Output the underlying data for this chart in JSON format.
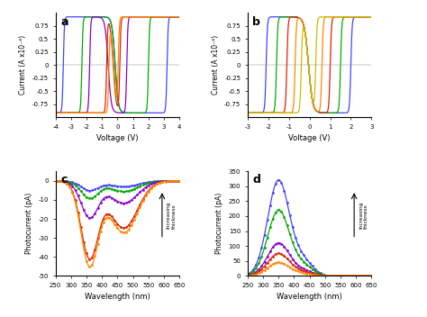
{
  "panel_a": {
    "colors": [
      "#4444ff",
      "#00aa00",
      "#8800cc",
      "#dd2200",
      "#ff8800"
    ],
    "v_on_pos": [
      3.2,
      2.0,
      0.6,
      0.15,
      0.05
    ],
    "v_on_neg": [
      -3.5,
      -2.3,
      -1.8,
      -0.7,
      -0.55
    ],
    "xlim": [
      -4,
      4
    ],
    "ylim": [
      -1,
      1
    ],
    "xticks": [
      -4,
      -3,
      -2,
      -1,
      0,
      1,
      2,
      3,
      4
    ],
    "yticks": [
      -0.75,
      -0.5,
      -0.25,
      0,
      0.25,
      0.5,
      0.75
    ],
    "xlabel": "Voltage (V)",
    "ylabel": "Current (A x10⁻⁴)",
    "label": "a"
  },
  "panel_b": {
    "colors": [
      "#4444ff",
      "#00aa00",
      "#dd2200",
      "#ff8800",
      "#ccbb00"
    ],
    "v_on_pos": [
      2.0,
      1.5,
      1.0,
      0.6,
      0.3
    ],
    "v_on_neg": [
      -2.1,
      -1.6,
      -1.1,
      -0.7,
      -0.4
    ],
    "xlim": [
      -3,
      3
    ],
    "ylim": [
      -1,
      1
    ],
    "xticks": [
      -3,
      -2,
      -1,
      0,
      1,
      2,
      3
    ],
    "yticks": [
      -0.75,
      -0.5,
      -0.25,
      0,
      0.25,
      0.5,
      0.75
    ],
    "xlabel": "Voltage (V)",
    "ylabel": "Current (A x10⁻⁴)",
    "label": "b"
  },
  "panel_c": {
    "colors": [
      "#4444ff",
      "#00aa00",
      "#8800cc",
      "#dd2200",
      "#ff8800"
    ],
    "scales": [
      5,
      9,
      19,
      40,
      44
    ],
    "peak1_wl": 360,
    "peak1_sigma": 28,
    "peak2_wl": 470,
    "peak2_ratio": 0.62,
    "peak2_sigma": 45,
    "xlim": [
      250,
      650
    ],
    "ylim": [
      -50,
      5
    ],
    "xticks": [
      250,
      300,
      350,
      400,
      450,
      500,
      550,
      600,
      650
    ],
    "yticks": [
      -50,
      -40,
      -30,
      -20,
      -10,
      0
    ],
    "xlabel": "Wavelength (nm)",
    "ylabel": "Photocurrent (pA)",
    "label": "c",
    "arrow_text": "Increasing\nthickness"
  },
  "panel_d": {
    "colors": [
      "#4444ff",
      "#00aa00",
      "#8800cc",
      "#dd2200",
      "#ff8800"
    ],
    "scales": [
      320,
      220,
      110,
      75,
      45
    ],
    "peak1_wl": 350,
    "peak1_sigma": 35,
    "peak2_wl": 430,
    "peak2_ratio": 0.15,
    "peak2_sigma": 30,
    "xlim": [
      250,
      650
    ],
    "ylim": [
      0,
      350
    ],
    "xticks": [
      250,
      300,
      350,
      400,
      450,
      500,
      550,
      600,
      650
    ],
    "yticks": [
      0,
      50,
      100,
      150,
      200,
      250,
      300,
      350
    ],
    "xlabel": "Wavelength (nm)",
    "ylabel": "Photocurrent (pA)",
    "label": "d",
    "arrow_text": "Increasing\nthickness"
  }
}
